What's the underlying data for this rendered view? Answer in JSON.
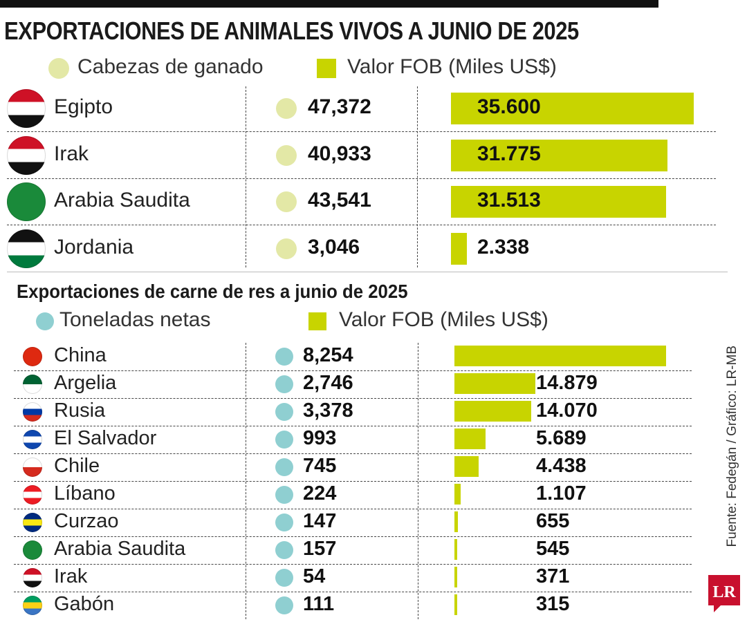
{
  "chart_data": [
    {
      "type": "bar",
      "title": "EXPORTACIONES DE ANIMALES VIVOS A JUNIO DE 2025",
      "legend": {
        "dot_label": "Cabezas de ganado",
        "bar_label": "Valor FOB (Miles US$)"
      },
      "dot_color": "#e3e8a6",
      "bar_color": "#c8d400",
      "rows": [
        {
          "country": "Egipto",
          "flag": "egypt-flag",
          "stripes": [
            "#ce1126",
            "#ffffff",
            "#111111"
          ],
          "heads": "47,372",
          "fob_label": "35.600",
          "fob": 35600
        },
        {
          "country": "Irak",
          "flag": "iraq-flag",
          "stripes": [
            "#ce1126",
            "#ffffff",
            "#111111"
          ],
          "heads": "40,933",
          "fob_label": "31.775",
          "fob": 31775
        },
        {
          "country": "Arabia Saudita",
          "flag": "saudi-arabia-flag",
          "stripes": [
            "#1a8a3a"
          ],
          "heads": "43,541",
          "fob_label": "31.513",
          "fob": 31513
        },
        {
          "country": "Jordania",
          "flag": "jordan-flag",
          "stripes": [
            "#111111",
            "#ffffff",
            "#007a3d"
          ],
          "heads": "3,046",
          "fob_label": "2.338",
          "fob": 2338
        }
      ]
    },
    {
      "type": "bar",
      "title": "Exportaciones de carne de res a junio de 2025",
      "legend": {
        "dot_label": "Toneladas netas",
        "bar_label": "Valor FOB (Miles US$)"
      },
      "dot_color": "#8fcfd1",
      "bar_color": "#c8d400",
      "rows": [
        {
          "country": "China",
          "flag": "china-flag",
          "stripes": [
            "#de2910"
          ],
          "tons": "8,254",
          "fob_label": "",
          "fob": 38900
        },
        {
          "country": "Argelia",
          "flag": "algeria-flag",
          "stripes": [
            "#006233",
            "#ffffff"
          ],
          "tons": "2,746",
          "fob_label": "14.879",
          "fob": 14879
        },
        {
          "country": "Rusia",
          "flag": "russia-flag",
          "stripes": [
            "#ffffff",
            "#0039a6",
            "#d52b1e"
          ],
          "tons": "3,378",
          "fob_label": "14.070",
          "fob": 14070
        },
        {
          "country": "El Salvador",
          "flag": "el-salvador-flag",
          "stripes": [
            "#0f47af",
            "#ffffff",
            "#0f47af"
          ],
          "tons": "993",
          "fob_label": "5.689",
          "fob": 5689
        },
        {
          "country": "Chile",
          "flag": "chile-flag",
          "stripes": [
            "#ffffff",
            "#d52b1e"
          ],
          "tons": "745",
          "fob_label": "4.438",
          "fob": 4438
        },
        {
          "country": "Líbano",
          "flag": "lebanon-flag",
          "stripes": [
            "#ed1c24",
            "#ffffff",
            "#ed1c24"
          ],
          "tons": "224",
          "fob_label": "1.107",
          "fob": 1107
        },
        {
          "country": "Curzao",
          "flag": "curacao-flag",
          "stripes": [
            "#002b7f",
            "#f9e814",
            "#002b7f"
          ],
          "tons": "147",
          "fob_label": "655",
          "fob": 655
        },
        {
          "country": "Arabia Saudita",
          "flag": "saudi-arabia-flag",
          "stripes": [
            "#1a8a3a"
          ],
          "tons": "157",
          "fob_label": "545",
          "fob": 545
        },
        {
          "country": "Irak",
          "flag": "iraq-flag",
          "stripes": [
            "#ce1126",
            "#ffffff",
            "#111111"
          ],
          "tons": "54",
          "fob_label": "371",
          "fob": 371
        },
        {
          "country": "Gabón",
          "flag": "gabon-flag",
          "stripes": [
            "#009e60",
            "#fcd116",
            "#3a75c4"
          ],
          "tons": "111",
          "fob_label": "315",
          "fob": 315
        }
      ]
    }
  ],
  "source": "Fuente: Fedegán / Gráfico: LR-MB",
  "logo": {
    "text": "LR",
    "color": "#c8102e"
  }
}
